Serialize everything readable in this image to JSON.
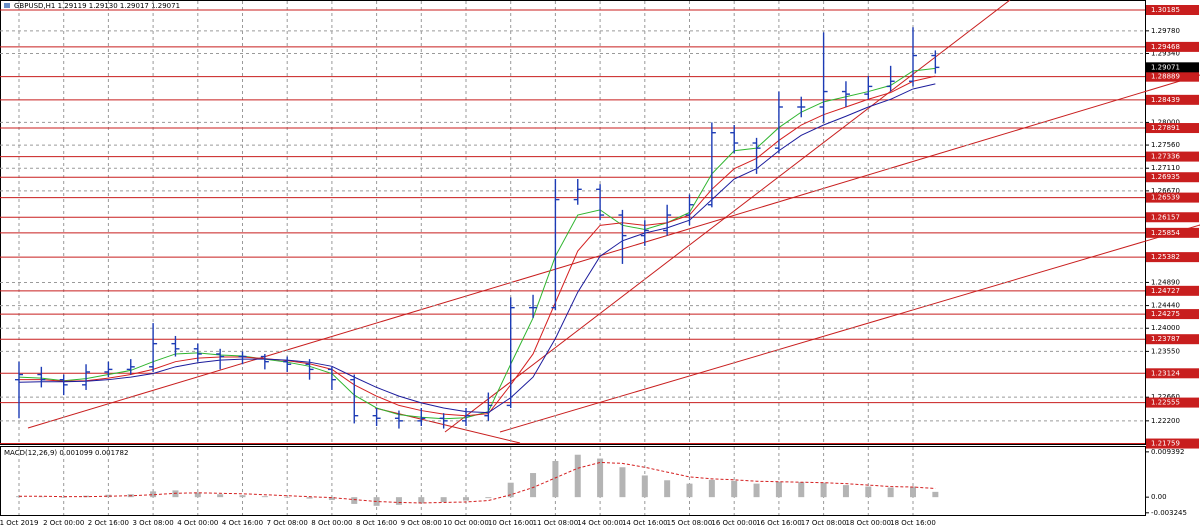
{
  "chart_data": [
    {
      "type": "ohlc",
      "title": "GBPUSD,H1  1.29119 1.29130 1.29017 1.29071",
      "categories": [
        "1 Oct 2019",
        null,
        "2 Oct 00:00",
        null,
        "2 Oct 16:00",
        null,
        "3 Oct 08:00",
        null,
        "4 Oct 00:00",
        null,
        "4 Oct 16:00",
        null,
        "7 Oct 08:00",
        null,
        "8 Oct 00:00",
        null,
        "8 Oct 16:00",
        null,
        "9 Oct 08:00",
        null,
        "10 Oct 00:00",
        null,
        "10 Oct 16:00",
        null,
        "11 Oct 08:00",
        null,
        "14 Oct 00:00",
        null,
        "14 Oct 16:00",
        null,
        "15 Oct 08:00",
        null,
        "16 Oct 00:00",
        null,
        "16 Oct 16:00",
        null,
        "17 Oct 08:00",
        null,
        "18 Oct 00:00",
        null,
        "18 Oct 16:00",
        null
      ],
      "open": [
        1.23,
        1.231,
        1.23,
        1.229,
        1.2315,
        1.232,
        1.2325,
        1.237,
        1.236,
        1.235,
        1.2345,
        1.2345,
        1.2335,
        1.233,
        1.232,
        1.23,
        1.223,
        1.2225,
        1.222,
        1.2225,
        1.222,
        1.223,
        1.225,
        1.244,
        1.244,
        1.265,
        1.267,
        1.262,
        1.258,
        1.259,
        1.262,
        1.264,
        1.278,
        1.276,
        1.275,
        1.283,
        1.283,
        1.286,
        1.2855,
        1.287,
        1.288,
        1.293
      ],
      "high": [
        1.2335,
        1.2325,
        1.231,
        1.233,
        1.2335,
        1.234,
        1.241,
        1.2385,
        1.237,
        1.236,
        1.2355,
        1.235,
        1.2345,
        1.234,
        1.2325,
        1.231,
        1.2245,
        1.224,
        1.2245,
        1.2235,
        1.2245,
        1.2275,
        1.246,
        1.2465,
        1.269,
        1.269,
        1.268,
        1.263,
        1.261,
        1.264,
        1.266,
        1.28,
        1.2795,
        1.277,
        1.286,
        1.285,
        1.2975,
        1.288,
        1.289,
        1.291,
        1.2985,
        1.294
      ],
      "low": [
        1.2225,
        1.2285,
        1.227,
        1.228,
        1.2305,
        1.231,
        1.2315,
        1.2345,
        1.2335,
        1.232,
        1.233,
        1.232,
        1.2315,
        1.23,
        1.228,
        1.2215,
        1.221,
        1.2205,
        1.221,
        1.2205,
        1.221,
        1.222,
        1.2245,
        1.242,
        1.2435,
        1.264,
        1.261,
        1.2525,
        1.256,
        1.258,
        1.26,
        1.2635,
        1.274,
        1.27,
        1.274,
        1.281,
        1.28,
        1.283,
        1.2845,
        1.286,
        1.287,
        1.2895
      ],
      "close": [
        1.231,
        1.23,
        1.229,
        1.2315,
        1.232,
        1.2325,
        1.237,
        1.236,
        1.235,
        1.2345,
        1.2345,
        1.2335,
        1.233,
        1.232,
        1.23,
        1.223,
        1.2225,
        1.222,
        1.2225,
        1.222,
        1.223,
        1.225,
        1.244,
        1.244,
        1.265,
        1.267,
        1.262,
        1.258,
        1.259,
        1.262,
        1.264,
        1.278,
        1.276,
        1.275,
        1.283,
        1.283,
        1.286,
        1.2855,
        1.287,
        1.288,
        1.293,
        1.2907
      ],
      "bar_color": "#1c3bb5",
      "series": [
        {
          "color": "#2fb52f",
          "values": [
            1.2305,
            1.2303,
            1.2298,
            1.2302,
            1.231,
            1.2318,
            1.2335,
            1.235,
            1.2352,
            1.2348,
            1.2346,
            1.234,
            1.2334,
            1.2326,
            1.2312,
            1.227,
            1.2245,
            1.2232,
            1.2227,
            1.2224,
            1.2226,
            1.2238,
            1.233,
            1.242,
            1.254,
            1.262,
            1.263,
            1.26,
            1.2592,
            1.2605,
            1.2625,
            1.27,
            1.2745,
            1.275,
            1.279,
            1.282,
            1.284,
            1.285,
            1.286,
            1.2872,
            1.29,
            1.2905
          ]
        },
        {
          "color": "#d42020",
          "values": [
            1.23,
            1.23,
            1.2297,
            1.2298,
            1.2303,
            1.231,
            1.232,
            1.2335,
            1.2342,
            1.2344,
            1.2344,
            1.2341,
            1.2337,
            1.2331,
            1.232,
            1.229,
            1.2268,
            1.225,
            1.224,
            1.2233,
            1.223,
            1.2234,
            1.229,
            1.235,
            1.245,
            1.255,
            1.26,
            1.2605,
            1.26,
            1.2605,
            1.262,
            1.267,
            1.271,
            1.273,
            1.2765,
            1.2795,
            1.2815,
            1.283,
            1.2845,
            1.2858,
            1.288,
            1.289
          ]
        },
        {
          "color": "#1c1c9c",
          "values": [
            1.2295,
            1.2296,
            1.2296,
            1.2297,
            1.23,
            1.2305,
            1.2312,
            1.2325,
            1.2333,
            1.2338,
            1.234,
            1.234,
            1.2338,
            1.2334,
            1.2326,
            1.2305,
            1.2285,
            1.2268,
            1.2255,
            1.2245,
            1.2238,
            1.2236,
            1.2265,
            1.2305,
            1.238,
            1.247,
            1.254,
            1.257,
            1.2585,
            1.2595,
            1.261,
            1.265,
            1.269,
            1.271,
            1.2745,
            1.2775,
            1.2795,
            1.2812,
            1.283,
            1.2845,
            1.2865,
            1.2875
          ]
        }
      ],
      "levels": [
        1.30185,
        1.29468,
        1.28889,
        1.28439,
        1.27891,
        1.27336,
        1.26935,
        1.26539,
        1.26157,
        1.25854,
        1.25382,
        1.24727,
        1.24275,
        1.23787,
        1.23124,
        1.22555,
        1.21759
      ],
      "level_color": "#c81e1e",
      "current_price": 1.29071,
      "ylim": [
        1.2175,
        1.3036
      ],
      "yticks": [
        {
          "value": 1.2978,
          "label": "1.29780"
        },
        {
          "value": 1.2934,
          "label": "1.29340"
        },
        {
          "value": 1.28,
          "label": "1.28000"
        },
        {
          "value": 1.2756,
          "label": "1.27560"
        },
        {
          "value": 1.2711,
          "label": "1.27110"
        },
        {
          "value": 1.2667,
          "label": "1.26670"
        },
        {
          "value": 1.2489,
          "label": "1.24890"
        },
        {
          "value": 1.2444,
          "label": "1.24440"
        },
        {
          "value": 1.24,
          "label": "1.24000"
        },
        {
          "value": 1.2355,
          "label": "1.23550"
        },
        {
          "value": 1.2266,
          "label": "1.22660"
        },
        {
          "value": 1.222,
          "label": "1.22200"
        }
      ],
      "grid": true
    },
    {
      "type": "macd",
      "title": "MACD(12,26,9) 0.001099 0.001782",
      "series": [
        {
          "type": "bar",
          "color": "#b4b4b4",
          "values": [
            0.0002,
            0.0001,
            -0.0001,
            0.0003,
            0.0005,
            0.0006,
            0.0012,
            0.0014,
            0.001,
            0.0006,
            0.0004,
            0.0002,
            0.0,
            -0.0003,
            -0.0006,
            -0.0014,
            -0.0018,
            -0.0016,
            -0.0013,
            -0.001,
            -0.0007,
            -0.0002,
            0.003,
            0.005,
            0.0075,
            0.0088,
            0.008,
            0.0062,
            0.0045,
            0.0035,
            0.0028,
            0.0036,
            0.0034,
            0.0028,
            0.0032,
            0.0031,
            0.003,
            0.0025,
            0.0022,
            0.002,
            0.0022,
            0.0011
          ]
        },
        {
          "type": "line",
          "color": "#d42020",
          "values": [
            0.0002,
            0.0002,
            0.0001,
            0.0001,
            0.0002,
            0.0003,
            0.0005,
            0.0008,
            0.0009,
            0.0008,
            0.0007,
            0.0005,
            0.0003,
            0.0001,
            -0.0001,
            -0.0005,
            -0.0009,
            -0.0011,
            -0.0012,
            -0.0011,
            -0.001,
            -0.0007,
            0.0005,
            0.002,
            0.004,
            0.006,
            0.0072,
            0.007,
            0.0062,
            0.0052,
            0.0042,
            0.0038,
            0.0036,
            0.0033,
            0.0032,
            0.0031,
            0.003,
            0.0028,
            0.0025,
            0.0022,
            0.0021,
            0.0018
          ]
        }
      ],
      "ylim": [
        -0.0037,
        0.0104
      ],
      "yticks": [
        0.009392,
        {
          "value": 0,
          "label": "0.00"
        },
        -0.003245
      ]
    }
  ]
}
